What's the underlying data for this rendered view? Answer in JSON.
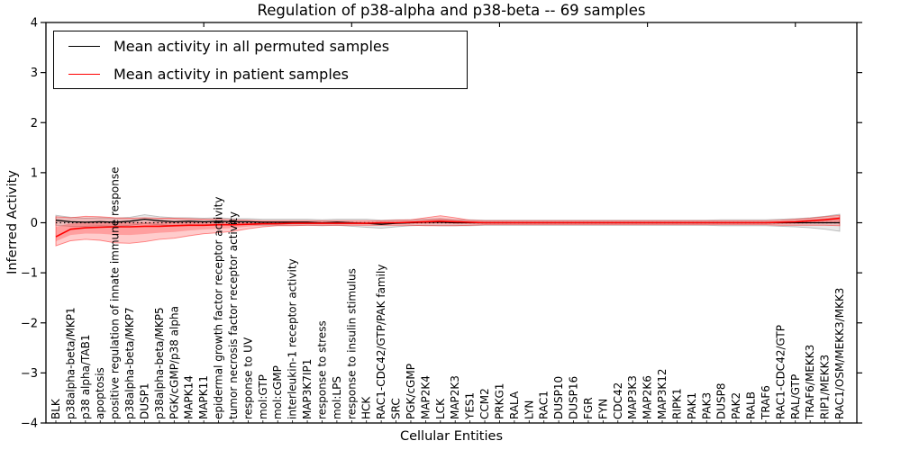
{
  "chart_data": {
    "type": "line",
    "title": "Regulation of p38-alpha and p38-beta -- 69 samples",
    "xlabel": "Cellular Entities",
    "ylabel": "Inferred Activity",
    "ylim": [
      -4,
      4
    ],
    "yticks": [
      -4,
      -3,
      -2,
      -1,
      0,
      1,
      2,
      3,
      4
    ],
    "grid": false,
    "legend_position": "upper left",
    "background_color": "#ffffff",
    "axis_color": "#000000",
    "zero_line": {
      "style": "dotted",
      "color": "#000000",
      "y": 0
    },
    "categories": [
      "BLK",
      "p38alpha-beta/MKP1",
      "p38 alpha/TAB1",
      "apoptosis",
      "positive regulation of innate immune response",
      "p38alpha-beta/MKP7",
      "DUSP1",
      "p38alpha-beta/MKP5",
      "PGK/cGMP/p38 alpha",
      "MAPK14",
      "MAPK11",
      "epidermal growth factor receptor activity",
      "tumor necrosis factor receptor activity",
      "response to UV",
      "mol:GTP",
      "mol:cGMP",
      "interleukin-1 receptor activity",
      "MAP3K7IP1",
      "response to stress",
      "mol:LPS",
      "response to insulin stimulus",
      "HCK",
      "RAC1-CDC42/GTP/PAK family",
      "SRC",
      "PGK/cGMP",
      "MAP2K4",
      "LCK",
      "MAP2K3",
      "YES1",
      "CCM2",
      "PRKG1",
      "RALA",
      "LYN",
      "RAC1",
      "DUSP10",
      "DUSP16",
      "FGR",
      "FYN",
      "CDC42",
      "MAP3K3",
      "MAP2K6",
      "MAP3K12",
      "RIPK1",
      "PAK1",
      "PAK3",
      "DUSP8",
      "PAK2",
      "RALB",
      "TRAF6",
      "RAC1-CDC42/GTP",
      "RAL/GTP",
      "TRAF6/MEKK3",
      "RIP1/MEKK3",
      "RAC1/OSM/MEKK3/MKK3"
    ],
    "series": [
      {
        "name": "Mean activity in all permuted samples",
        "color": "#000000",
        "band_color": "#9e9e9e",
        "values": [
          0.05,
          0.02,
          0.01,
          0.02,
          0.01,
          0.03,
          0.07,
          0.04,
          0.02,
          0.03,
          0.02,
          0.03,
          0.02,
          0.02,
          0.01,
          0.01,
          0.01,
          0.01,
          0,
          0.01,
          0,
          -0.01,
          -0.03,
          -0.01,
          0,
          0.01,
          0.01,
          0,
          0,
          0,
          0,
          0,
          0,
          0,
          0,
          0,
          0,
          0,
          0,
          0,
          0,
          0,
          0,
          0,
          0,
          0,
          0,
          0,
          0,
          0,
          0,
          0,
          0,
          0
        ],
        "band_halfwidth": [
          0.1,
          0.09,
          0.08,
          0.08,
          0.08,
          0.08,
          0.09,
          0.08,
          0.08,
          0.07,
          0.07,
          0.07,
          0.06,
          0.06,
          0.06,
          0.06,
          0.06,
          0.06,
          0.06,
          0.06,
          0.07,
          0.08,
          0.08,
          0.07,
          0.06,
          0.06,
          0.07,
          0.06,
          0.06,
          0.05,
          0.05,
          0.05,
          0.05,
          0.05,
          0.05,
          0.05,
          0.05,
          0.05,
          0.05,
          0.05,
          0.05,
          0.05,
          0.05,
          0.05,
          0.05,
          0.06,
          0.06,
          0.06,
          0.06,
          0.07,
          0.08,
          0.1,
          0.13,
          0.17
        ]
      },
      {
        "name": "Mean activity in patient samples",
        "color": "#ff0000",
        "band_color": "#ff0000",
        "values": [
          -0.28,
          -0.13,
          -0.1,
          -0.09,
          -0.08,
          -0.08,
          -0.07,
          -0.07,
          -0.06,
          -0.05,
          -0.05,
          -0.04,
          -0.04,
          -0.03,
          -0.02,
          -0.02,
          -0.01,
          -0.01,
          -0.01,
          -0.01,
          -0.01,
          -0.01,
          0,
          0,
          0.01,
          0.02,
          0.03,
          0.02,
          0.01,
          0,
          0,
          0,
          0,
          0,
          0,
          0,
          0,
          0,
          0,
          0,
          0,
          0,
          0,
          0,
          0,
          0,
          0,
          0,
          0,
          0.01,
          0.02,
          0.04,
          0.06,
          0.09
        ],
        "band_hi": [
          0.12,
          0.1,
          0.13,
          0.12,
          0.1,
          0.09,
          0.1,
          0.09,
          0.09,
          0.08,
          0.07,
          0.07,
          0.06,
          0.05,
          0.04,
          0.04,
          0.04,
          0.04,
          0.04,
          0.04,
          0.04,
          0.04,
          0.04,
          0.05,
          0.06,
          0.1,
          0.14,
          0.1,
          0.05,
          0.04,
          0.04,
          0.04,
          0.04,
          0.04,
          0.04,
          0.04,
          0.04,
          0.04,
          0.04,
          0.04,
          0.04,
          0.04,
          0.04,
          0.04,
          0.04,
          0.04,
          0.04,
          0.04,
          0.04,
          0.05,
          0.07,
          0.09,
          0.12,
          0.15
        ],
        "band_lo": [
          -0.46,
          -0.36,
          -0.33,
          -0.35,
          -0.4,
          -0.41,
          -0.38,
          -0.33,
          -0.31,
          -0.26,
          -0.22,
          -0.2,
          -0.17,
          -0.12,
          -0.08,
          -0.06,
          -0.06,
          -0.05,
          -0.05,
          -0.05,
          -0.05,
          -0.05,
          -0.05,
          -0.05,
          -0.05,
          -0.06,
          -0.06,
          -0.06,
          -0.05,
          -0.04,
          -0.04,
          -0.04,
          -0.04,
          -0.04,
          -0.04,
          -0.04,
          -0.04,
          -0.04,
          -0.04,
          -0.04,
          -0.04,
          -0.04,
          -0.04,
          -0.04,
          -0.04,
          -0.04,
          -0.04,
          -0.04,
          -0.04,
          -0.05,
          -0.05,
          -0.05,
          -0.05,
          -0.06
        ]
      }
    ]
  }
}
